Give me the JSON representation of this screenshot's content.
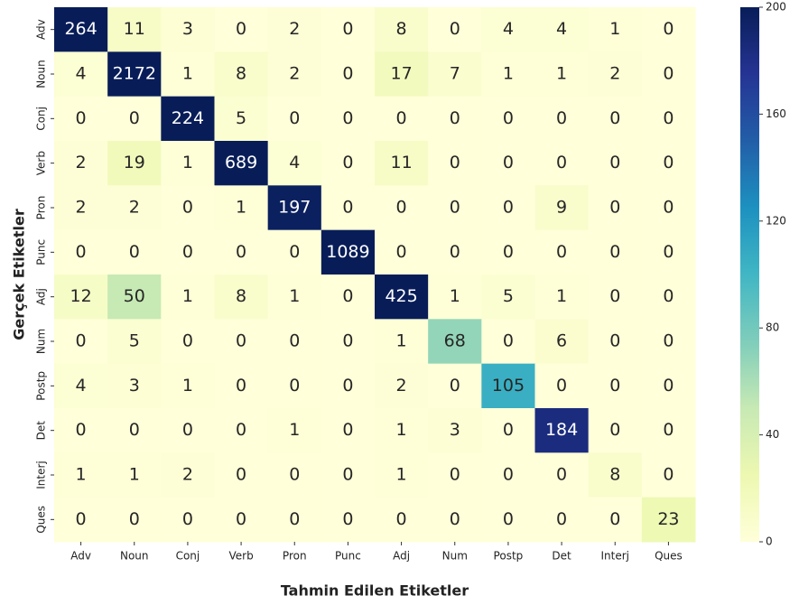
{
  "chart_data": {
    "type": "heatmap",
    "xlabel": "Tahmin Edilen Etiketler",
    "ylabel": "Gerçek Etiketler",
    "x_categories": [
      "Adv",
      "Noun",
      "Conj",
      "Verb",
      "Pron",
      "Punc",
      "Adj",
      "Num",
      "Postp",
      "Det",
      "Interj",
      "Ques"
    ],
    "y_categories": [
      "Adv",
      "Noun",
      "Conj",
      "Verb",
      "Pron",
      "Punc",
      "Adj",
      "Num",
      "Postp",
      "Det",
      "Interj",
      "Ques"
    ],
    "values": [
      [
        264,
        11,
        3,
        0,
        2,
        0,
        8,
        0,
        4,
        4,
        1,
        0
      ],
      [
        4,
        2172,
        1,
        8,
        2,
        0,
        17,
        7,
        1,
        1,
        2,
        0
      ],
      [
        0,
        0,
        224,
        5,
        0,
        0,
        0,
        0,
        0,
        0,
        0,
        0
      ],
      [
        2,
        19,
        1,
        689,
        4,
        0,
        11,
        0,
        0,
        0,
        0,
        0
      ],
      [
        2,
        2,
        0,
        1,
        197,
        0,
        0,
        0,
        0,
        9,
        0,
        0
      ],
      [
        0,
        0,
        0,
        0,
        0,
        1089,
        0,
        0,
        0,
        0,
        0,
        0
      ],
      [
        12,
        50,
        1,
        8,
        1,
        0,
        425,
        1,
        5,
        1,
        0,
        0
      ],
      [
        0,
        5,
        0,
        0,
        0,
        0,
        1,
        68,
        0,
        6,
        0,
        0
      ],
      [
        4,
        3,
        1,
        0,
        0,
        0,
        2,
        0,
        105,
        0,
        0,
        0
      ],
      [
        0,
        0,
        0,
        0,
        1,
        0,
        1,
        3,
        0,
        184,
        0,
        0
      ],
      [
        1,
        1,
        2,
        0,
        0,
        0,
        1,
        0,
        0,
        0,
        8,
        0
      ],
      [
        0,
        0,
        0,
        0,
        0,
        0,
        0,
        0,
        0,
        0,
        0,
        23
      ]
    ],
    "colorbar_lim": [
      0,
      200
    ],
    "colorbar_ticks": [
      0,
      40,
      80,
      120,
      160,
      200
    ],
    "colormap": [
      "#ffffd9",
      "#edf8b1",
      "#c7e9b4",
      "#7fcdbb",
      "#41b6c4",
      "#1d91c0",
      "#225ea8",
      "#253494",
      "#081d58"
    ]
  }
}
